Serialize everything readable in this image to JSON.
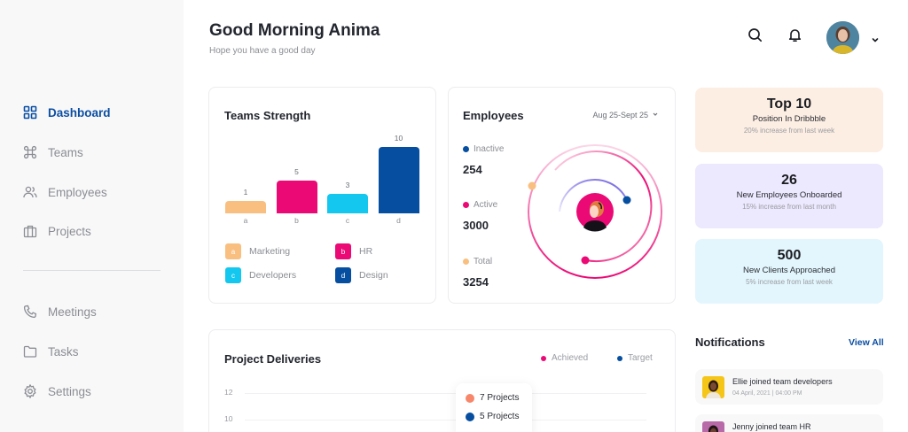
{
  "sidebar": {
    "items": [
      {
        "label": "Dashboard",
        "icon": "grid-icon",
        "active": true
      },
      {
        "label": "Teams",
        "icon": "command-icon",
        "active": false
      },
      {
        "label": "Employees",
        "icon": "users-icon",
        "active": false
      },
      {
        "label": "Projects",
        "icon": "briefcase-icon",
        "active": false
      },
      {
        "label": "Meetings",
        "icon": "phone-icon",
        "active": false
      },
      {
        "label": "Tasks",
        "icon": "folder-icon",
        "active": false
      },
      {
        "label": "Settings",
        "icon": "gear-icon",
        "active": false
      }
    ]
  },
  "header": {
    "greeting": "Good Morning Anima",
    "subtitle": "Hope you have a good day",
    "icons": [
      "search-icon",
      "bell-icon"
    ],
    "profile_icon": "chevron-down-icon"
  },
  "teams_strength": {
    "title": "Teams Strength",
    "legend": [
      {
        "key": "a",
        "label": "Marketing",
        "color": "#f9bf80"
      },
      {
        "key": "b",
        "label": "HR",
        "color": "#eb0a75"
      },
      {
        "key": "c",
        "label": "Developers",
        "color": "#13c7ef"
      },
      {
        "key": "d",
        "label": "Design",
        "color": "#064ea0"
      }
    ]
  },
  "chart_data": {
    "type": "bar",
    "title": "Teams Strength",
    "categories": [
      "a",
      "b",
      "c",
      "d"
    ],
    "values": [
      1,
      5,
      3,
      10
    ],
    "series_labels": [
      "Marketing",
      "HR",
      "Developers",
      "Design"
    ],
    "colors": [
      "#f9bf80",
      "#eb0a75",
      "#13c7ef",
      "#064ea0"
    ],
    "xlabel": "",
    "ylabel": "",
    "ylim": [
      0,
      10
    ]
  },
  "employees": {
    "title": "Employees",
    "date_range": "Aug 25-Sept 25",
    "stats": [
      {
        "label": "Inactive",
        "value": "254",
        "color": "#064ea0"
      },
      {
        "label": "Active",
        "value": "3000",
        "color": "#eb0a75"
      },
      {
        "label": "Total",
        "value": "3254",
        "color": "#f9bf80"
      }
    ]
  },
  "stat_cards": [
    {
      "big": "Top 10",
      "mid": "Position In Dribbble",
      "small": "20% increase from last week",
      "bg": "#fdeee3"
    },
    {
      "big": "26",
      "mid": "New Employees Onboarded",
      "small": "15% increase from last month",
      "bg": "#ece8fd"
    },
    {
      "big": "500",
      "mid": "New Clients Approached",
      "small": "5% increase from last week",
      "bg": "#e3f6fd"
    }
  ],
  "project_deliveries": {
    "title": "Project Deliveries",
    "legend": [
      {
        "label": "Achieved",
        "color": "#eb0a75"
      },
      {
        "label": "Target",
        "color": "#064ea0"
      }
    ],
    "y_ticks": [
      "12",
      "10"
    ],
    "tooltip": [
      {
        "label": "7 Projects",
        "color": "#f7876a"
      },
      {
        "label": "5 Projects",
        "color": "#064ea0"
      }
    ]
  },
  "notifications": {
    "title": "Notifications",
    "view_all": "View All",
    "items": [
      {
        "text": "Ellie joined team developers",
        "time": "04 April, 2021 | 04:00 PM"
      },
      {
        "text": "Jenny joined team HR",
        "time": ""
      }
    ]
  }
}
